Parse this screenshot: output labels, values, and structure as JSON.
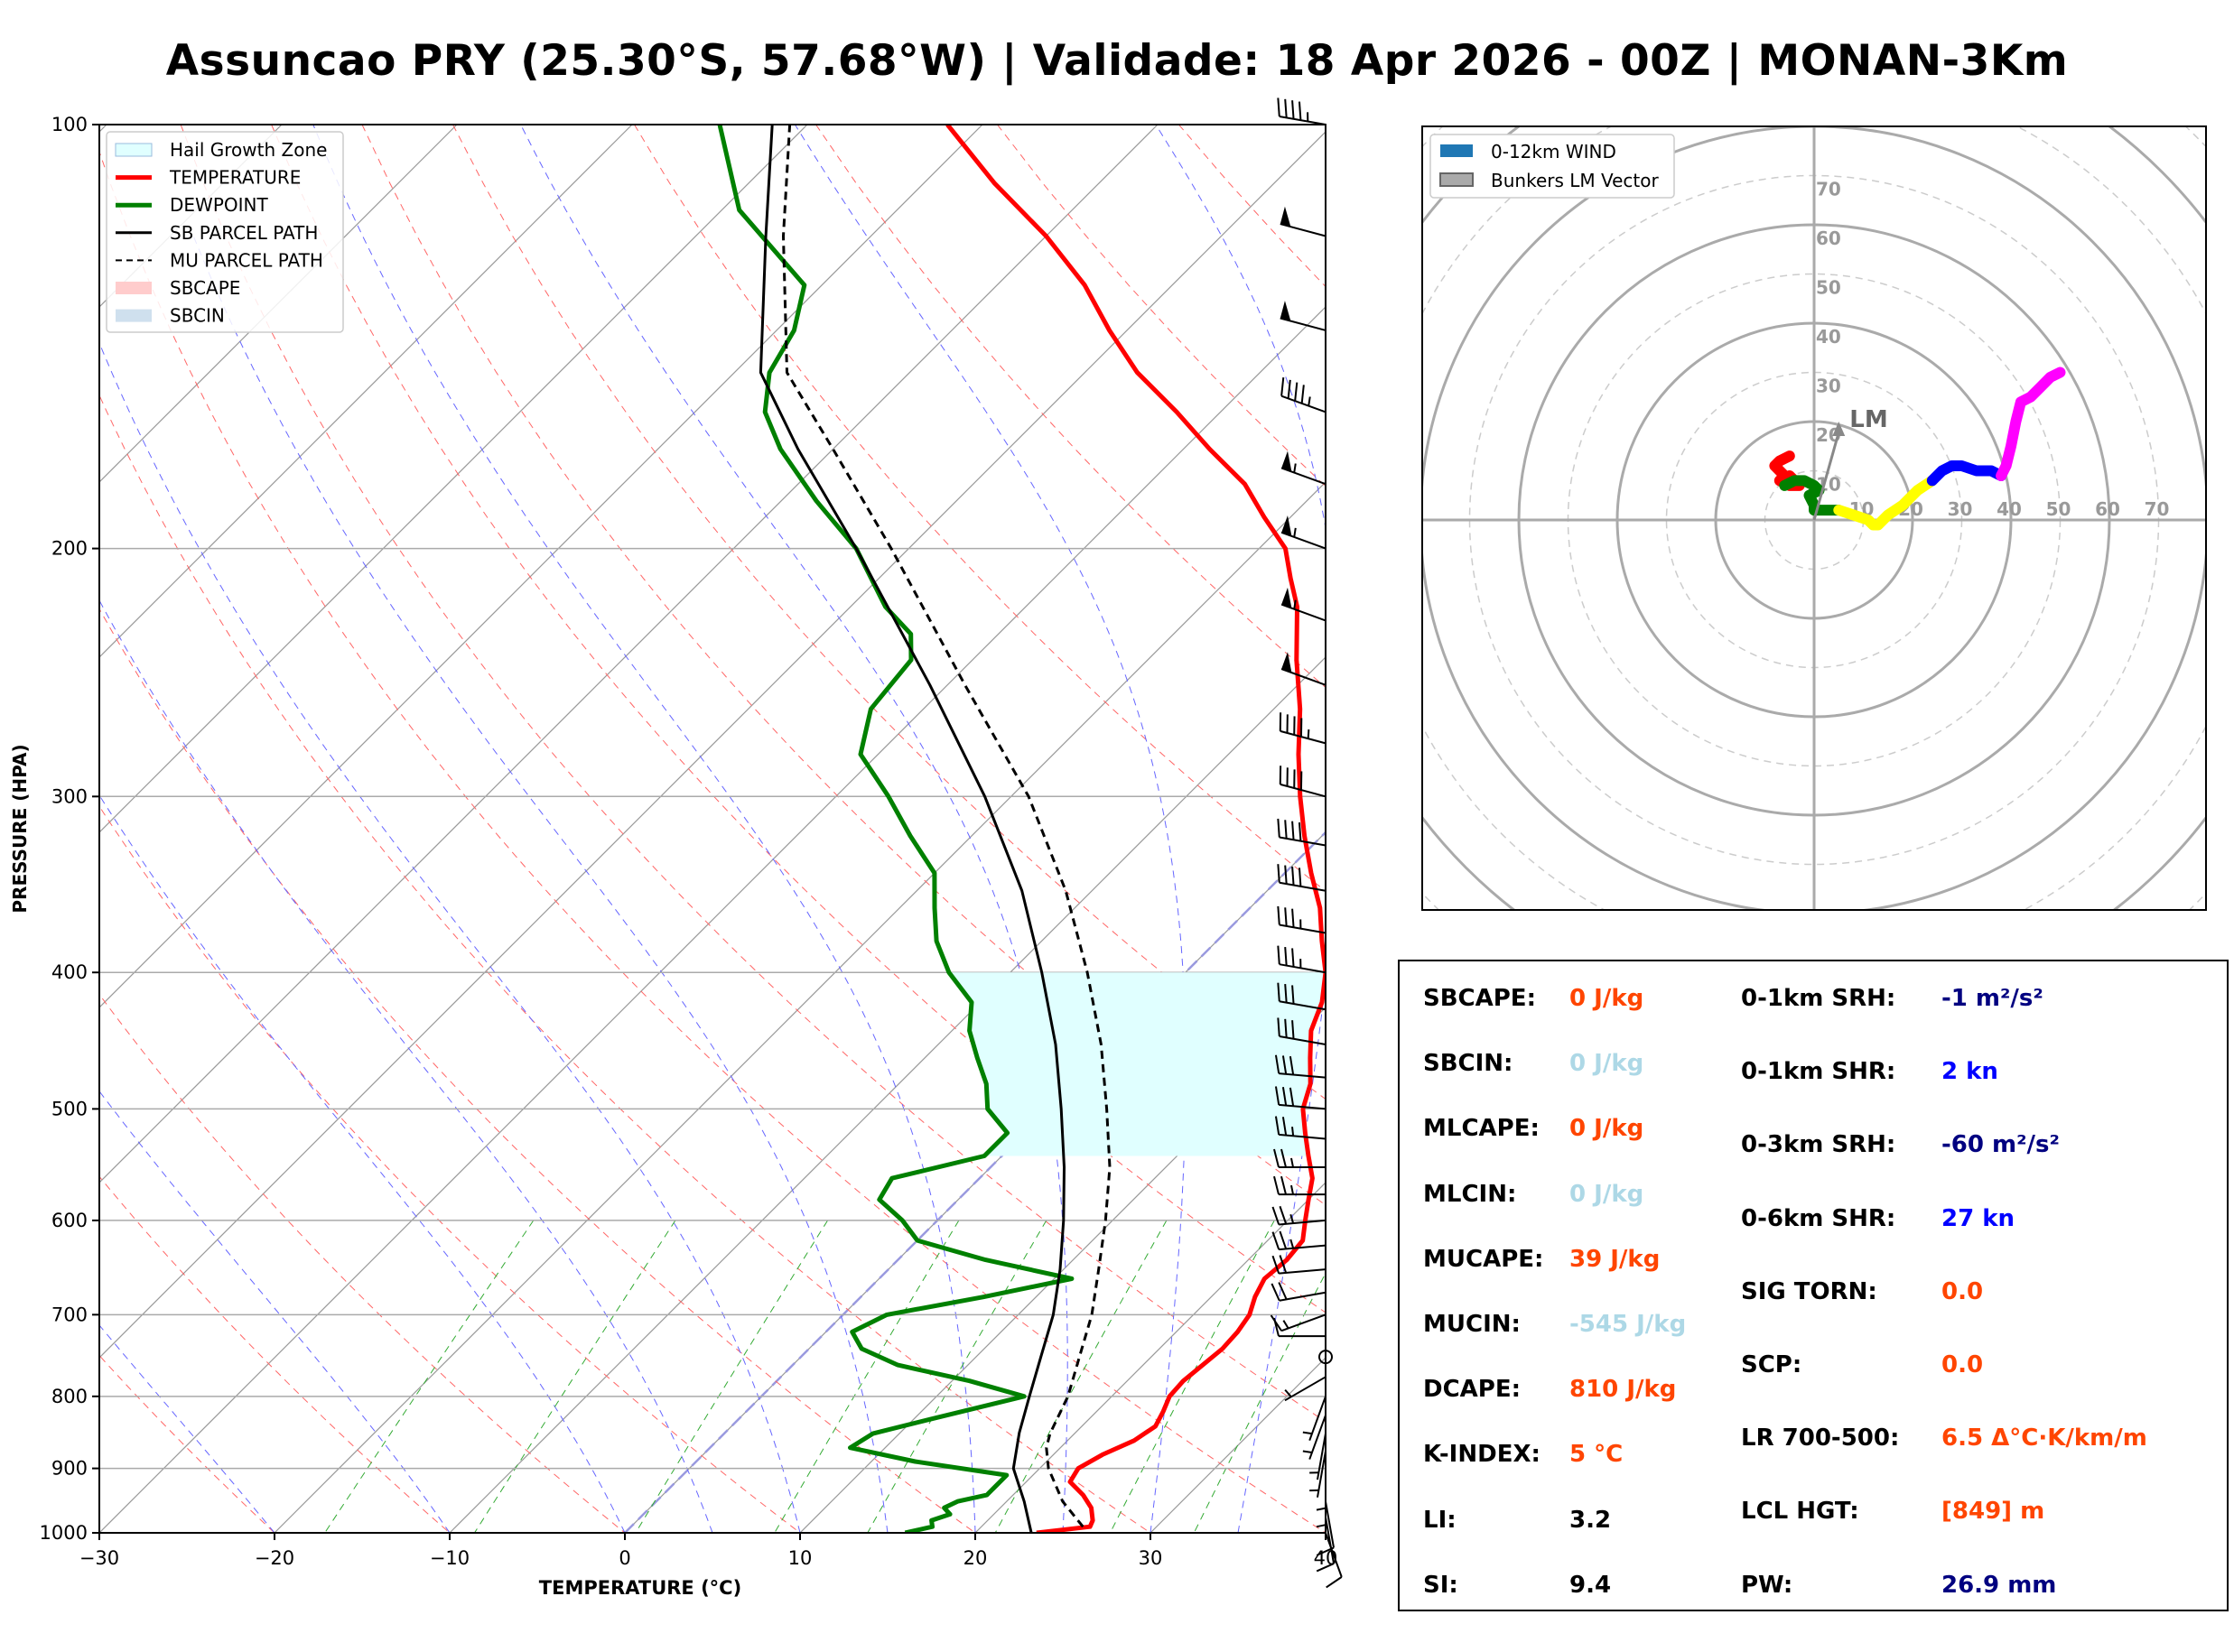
{
  "title": "Assuncao PRY (25.30°S, 57.68°W) | Validade: 18 Apr 2026 - 00Z | MONAN-3Km",
  "chart_data": [
    {
      "type": "line",
      "subtype": "skew-t log-p",
      "xlabel": "TEMPERATURE (°C)",
      "ylabel": "PRESSURE (HPA)",
      "xlim": [
        -30,
        40
      ],
      "ylim": [
        1000,
        100
      ],
      "x_ticks": [
        "−30",
        "−20",
        "−10",
        "0",
        "10",
        "20",
        "30",
        "40"
      ],
      "y_ticks": [
        "100",
        "200",
        "300",
        "400",
        "500",
        "600",
        "700",
        "800",
        "900",
        "1000"
      ],
      "legend": [
        "Hail Growth Zone",
        "TEMPERATURE",
        "DEWPOINT",
        "SB PARCEL PATH",
        "MU PARCEL PATH",
        "SBCAPE",
        "SBCIN"
      ],
      "legend_position": "top-left",
      "hail_growth_zone_hpa": [
        540,
        390
      ],
      "series": [
        {
          "name": "TEMPERATURE",
          "color": "#ff0000",
          "points": [
            [
              1000,
              23.5
            ],
            [
              990,
              26.2
            ],
            [
              980,
              26.0
            ],
            [
              960,
              25.2
            ],
            [
              940,
              24.0
            ],
            [
              920,
              22.5
            ],
            [
              900,
              22.2
            ],
            [
              880,
              22.8
            ],
            [
              860,
              23.8
            ],
            [
              840,
              24.2
            ],
            [
              820,
              23.8
            ],
            [
              800,
              23.3
            ],
            [
              780,
              23.2
            ],
            [
              760,
              23.4
            ],
            [
              740,
              23.6
            ],
            [
              720,
              23.5
            ],
            [
              700,
              23.2
            ],
            [
              680,
              22.5
            ],
            [
              660,
              22.0
            ],
            [
              640,
              22.2
            ],
            [
              620,
              22.0
            ],
            [
              600,
              21.0
            ],
            [
              580,
              20.0
            ],
            [
              560,
              19.0
            ],
            [
              540,
              17.5
            ],
            [
              520,
              16.0
            ],
            [
              500,
              14.5
            ],
            [
              480,
              13.5
            ],
            [
              460,
              12.0
            ],
            [
              440,
              10.5
            ],
            [
              420,
              9.5
            ],
            [
              400,
              8.0
            ],
            [
              380,
              6.0
            ],
            [
              360,
              4.0
            ],
            [
              340,
              1.5
            ],
            [
              320,
              -1.0
            ],
            [
              300,
              -3.5
            ],
            [
              280,
              -6.0
            ],
            [
              260,
              -8.5
            ],
            [
              240,
              -11.5
            ],
            [
              220,
              -14.5
            ],
            [
              210,
              -16.5
            ],
            [
              200,
              -18.5
            ],
            [
              190,
              -21.5
            ],
            [
              180,
              -24.5
            ],
            [
              170,
              -28.5
            ],
            [
              160,
              -32.5
            ],
            [
              150,
              -37.0
            ],
            [
              140,
              -41.0
            ],
            [
              130,
              -45.0
            ],
            [
              120,
              -50.0
            ],
            [
              110,
              -56.0
            ],
            [
              100,
              -62.0
            ]
          ]
        },
        {
          "name": "DEWPOINT",
          "color": "#008000",
          "points": [
            [
              1000,
              16.0
            ],
            [
              990,
              17.2
            ],
            [
              980,
              16.8
            ],
            [
              970,
              17.5
            ],
            [
              960,
              16.8
            ],
            [
              950,
              17.2
            ],
            [
              940,
              18.5
            ],
            [
              930,
              18.5
            ],
            [
              910,
              18.5
            ],
            [
              890,
              12.5
            ],
            [
              870,
              8.0
            ],
            [
              850,
              8.5
            ],
            [
              830,
              11.0
            ],
            [
              800,
              15.0
            ],
            [
              780,
              11.0
            ],
            [
              760,
              6.0
            ],
            [
              740,
              3.0
            ],
            [
              720,
              1.5
            ],
            [
              700,
              2.5
            ],
            [
              680,
              7.0
            ],
            [
              660,
              11.0
            ],
            [
              640,
              5.0
            ],
            [
              620,
              0.0
            ],
            [
              600,
              -2.0
            ],
            [
              580,
              -4.5
            ],
            [
              560,
              -5.0
            ],
            [
              540,
              -1.0
            ],
            [
              520,
              -1.0
            ],
            [
              500,
              -3.5
            ],
            [
              480,
              -5.0
            ],
            [
              460,
              -7.0
            ],
            [
              440,
              -9.0
            ],
            [
              420,
              -10.5
            ],
            [
              400,
              -13.5
            ],
            [
              380,
              -16.0
            ],
            [
              360,
              -18.0
            ],
            [
              340,
              -20.0
            ],
            [
              320,
              -23.5
            ],
            [
              300,
              -27.0
            ],
            [
              280,
              -31.0
            ],
            [
              260,
              -33.0
            ],
            [
              240,
              -33.5
            ],
            [
              230,
              -35.0
            ],
            [
              220,
              -38.0
            ],
            [
              200,
              -43.0
            ],
            [
              185,
              -48.0
            ],
            [
              170,
              -53.0
            ],
            [
              160,
              -56.0
            ],
            [
              150,
              -58.0
            ],
            [
              140,
              -59.0
            ],
            [
              130,
              -61.0
            ],
            [
              115,
              -69.0
            ],
            [
              100,
              -75.0
            ]
          ]
        },
        {
          "name": "SB PARCEL PATH",
          "color": "#000000",
          "points": [
            [
              1000,
              23.2
            ],
            [
              950,
              21.0
            ],
            [
              900,
              18.5
            ],
            [
              849,
              16.8
            ],
            [
              800,
              15.3
            ],
            [
              750,
              13.7
            ],
            [
              700,
              12.0
            ],
            [
              650,
              9.8
            ],
            [
              600,
              7.2
            ],
            [
              550,
              4.2
            ],
            [
              500,
              0.7
            ],
            [
              450,
              -3.3
            ],
            [
              400,
              -8.2
            ],
            [
              350,
              -14.0
            ],
            [
              300,
              -21.5
            ],
            [
              250,
              -31.0
            ],
            [
              200,
              -43.0
            ],
            [
              170,
              -52.0
            ],
            [
              150,
              -58.5
            ],
            [
              120,
              -66.0
            ],
            [
              100,
              -72.0
            ]
          ]
        },
        {
          "name": "MU PARCEL PATH",
          "color": "#000000",
          "points": [
            [
              990,
              25.8
            ],
            [
              950,
              23.2
            ],
            [
              900,
              20.5
            ],
            [
              870,
              19.2
            ],
            [
              850,
              18.6
            ],
            [
              800,
              17.5
            ],
            [
              750,
              15.9
            ],
            [
              700,
              14.2
            ],
            [
              650,
              12.0
            ],
            [
              600,
              9.6
            ],
            [
              550,
              6.8
            ],
            [
              500,
              3.3
            ],
            [
              450,
              -0.7
            ],
            [
              400,
              -5.6
            ],
            [
              350,
              -11.5
            ],
            [
              300,
              -19.0
            ],
            [
              250,
              -29.0
            ],
            [
              200,
              -41.0
            ],
            [
              170,
              -50.0
            ],
            [
              150,
              -57.0
            ],
            [
              120,
              -65.0
            ],
            [
              100,
              -71.0
            ]
          ]
        }
      ]
    },
    {
      "type": "scatter",
      "subtype": "hodograph",
      "legend": [
        "0-12km WIND",
        "Bunkers LM Vector"
      ],
      "legend_position": "top-left",
      "radial_labels": [
        "10",
        "20",
        "30",
        "40",
        "50",
        "60",
        "70"
      ],
      "rings_kn": [
        10,
        20,
        30,
        40,
        50,
        60,
        70
      ],
      "lm_label": "LM",
      "lm_vector_kn": [
        5,
        20
      ],
      "segments": [
        {
          "name": "0-1km",
          "color": "#ff0000",
          "points": [
            [
              -5,
              13
            ],
            [
              -7,
              12
            ],
            [
              -8,
              11
            ],
            [
              -6,
              9
            ],
            [
              -7,
              8
            ],
            [
              -5,
              7
            ],
            [
              -3,
              7
            ],
            [
              -5,
              9
            ]
          ]
        },
        {
          "name": "1-3km",
          "color": "#008000",
          "points": [
            [
              -6,
              7
            ],
            [
              -4,
              8
            ],
            [
              -2,
              8
            ],
            [
              0,
              7
            ],
            [
              1,
              6
            ],
            [
              -1,
              5
            ],
            [
              0,
              3
            ],
            [
              0,
              2
            ],
            [
              2,
              2
            ],
            [
              5,
              2
            ]
          ]
        },
        {
          "name": "3-6km",
          "color": "#ffff00",
          "points": [
            [
              5,
              2
            ],
            [
              8,
              1
            ],
            [
              11,
              0
            ],
            [
              12,
              -1
            ],
            [
              13,
              -1
            ],
            [
              15,
              1
            ],
            [
              18,
              3
            ],
            [
              21,
              6
            ],
            [
              24,
              8
            ]
          ]
        },
        {
          "name": "6-9km",
          "color": "#0000ff",
          "points": [
            [
              24,
              8
            ],
            [
              26,
              10
            ],
            [
              28,
              11
            ],
            [
              30,
              11
            ],
            [
              33,
              10
            ],
            [
              36,
              10
            ],
            [
              38,
              9
            ]
          ]
        },
        {
          "name": "9-12km",
          "color": "#ff00ff",
          "points": [
            [
              38,
              9
            ],
            [
              39,
              11
            ],
            [
              40,
              15
            ],
            [
              41,
              20
            ],
            [
              42,
              24
            ],
            [
              44,
              25
            ],
            [
              46,
              27
            ],
            [
              48,
              29
            ],
            [
              50,
              30
            ]
          ]
        }
      ]
    }
  ],
  "wind_barbs": [
    {
      "p": 1000,
      "dir": 160,
      "spd": 10
    },
    {
      "p": 975,
      "dir": 170,
      "spd": 10
    },
    {
      "p": 950,
      "dir": 170,
      "spd": 10
    },
    {
      "p": 925,
      "dir": 180,
      "spd": 5
    },
    {
      "p": 900,
      "dir": 180,
      "spd": 5
    },
    {
      "p": 875,
      "dir": 190,
      "spd": 5
    },
    {
      "p": 850,
      "dir": 190,
      "spd": 5
    },
    {
      "p": 825,
      "dir": 200,
      "spd": 5
    },
    {
      "p": 800,
      "dir": 200,
      "spd": 5
    },
    {
      "p": 775,
      "dir": 240,
      "spd": 5
    },
    {
      "p": 750,
      "dir": 0,
      "spd": 0
    },
    {
      "p": 725,
      "dir": 270,
      "spd": 10
    },
    {
      "p": 700,
      "dir": 250,
      "spd": 15
    },
    {
      "p": 675,
      "dir": 260,
      "spd": 20
    },
    {
      "p": 650,
      "dir": 265,
      "spd": 20
    },
    {
      "p": 625,
      "dir": 265,
      "spd": 25
    },
    {
      "p": 600,
      "dir": 265,
      "spd": 25
    },
    {
      "p": 575,
      "dir": 270,
      "spd": 25
    },
    {
      "p": 550,
      "dir": 270,
      "spd": 25
    },
    {
      "p": 525,
      "dir": 275,
      "spd": 25
    },
    {
      "p": 500,
      "dir": 275,
      "spd": 30
    },
    {
      "p": 475,
      "dir": 275,
      "spd": 30
    },
    {
      "p": 450,
      "dir": 280,
      "spd": 30
    },
    {
      "p": 425,
      "dir": 280,
      "spd": 30
    },
    {
      "p": 400,
      "dir": 280,
      "spd": 35
    },
    {
      "p": 375,
      "dir": 280,
      "spd": 35
    },
    {
      "p": 350,
      "dir": 280,
      "spd": 40
    },
    {
      "p": 325,
      "dir": 280,
      "spd": 40
    },
    {
      "p": 300,
      "dir": 285,
      "spd": 40
    },
    {
      "p": 275,
      "dir": 285,
      "spd": 45
    },
    {
      "p": 250,
      "dir": 290,
      "spd": 50
    },
    {
      "p": 225,
      "dir": 290,
      "spd": 55
    },
    {
      "p": 200,
      "dir": 290,
      "spd": 55
    },
    {
      "p": 180,
      "dir": 290,
      "spd": 55
    },
    {
      "p": 160,
      "dir": 290,
      "spd": 45
    },
    {
      "p": 140,
      "dir": 285,
      "spd": 50
    },
    {
      "p": 120,
      "dir": 285,
      "spd": 50
    },
    {
      "p": 100,
      "dir": 280,
      "spd": 45
    }
  ],
  "stats": {
    "col1": [
      {
        "label": "SBCAPE:",
        "value": "0 J/kg",
        "color": "#ff4500"
      },
      {
        "label": "SBCIN:",
        "value": "0 J/kg",
        "color": "#add8e6"
      },
      {
        "label": "MLCAPE:",
        "value": "0 J/kg",
        "color": "#ff4500"
      },
      {
        "label": "MLCIN:",
        "value": "0 J/kg",
        "color": "#add8e6"
      },
      {
        "label": "MUCAPE:",
        "value": "39 J/kg",
        "color": "#ff4500"
      },
      {
        "label": "MUCIN:",
        "value": "-545 J/kg",
        "color": "#add8e6"
      },
      {
        "label": "DCAPE:",
        "value": "810 J/kg",
        "color": "#ff4500"
      },
      {
        "label": "K-INDEX:",
        "value": "5 °C",
        "color": "#ff4500"
      },
      {
        "label": "LI:",
        "value": "3.2",
        "color": "#000000"
      },
      {
        "label": "SI:",
        "value": "9.4",
        "color": "#000000"
      }
    ],
    "col2": [
      {
        "label": "0-1km SRH:",
        "value": "-1 m²/s²",
        "color": "#000080"
      },
      {
        "label": "0-1km SHR:",
        "value": "2 kn",
        "color": "#0000ff"
      },
      {
        "label": "0-3km SRH:",
        "value": "-60 m²/s²",
        "color": "#000080"
      },
      {
        "label": "0-6km SHR:",
        "value": "27 kn",
        "color": "#0000ff"
      },
      {
        "label": "SIG TORN:",
        "value": "0.0",
        "color": "#ff4500"
      },
      {
        "label": "SCP:",
        "value": "0.0",
        "color": "#ff4500"
      },
      {
        "label": "LR 700-500:",
        "value": "6.5 Δ°C·K/km/m",
        "color": "#ff4500"
      },
      {
        "label": "LCL HGT:",
        "value": "[849] m",
        "color": "#ff4500"
      },
      {
        "label": "PW:",
        "value": "26.9 mm",
        "color": "#000080"
      }
    ]
  }
}
